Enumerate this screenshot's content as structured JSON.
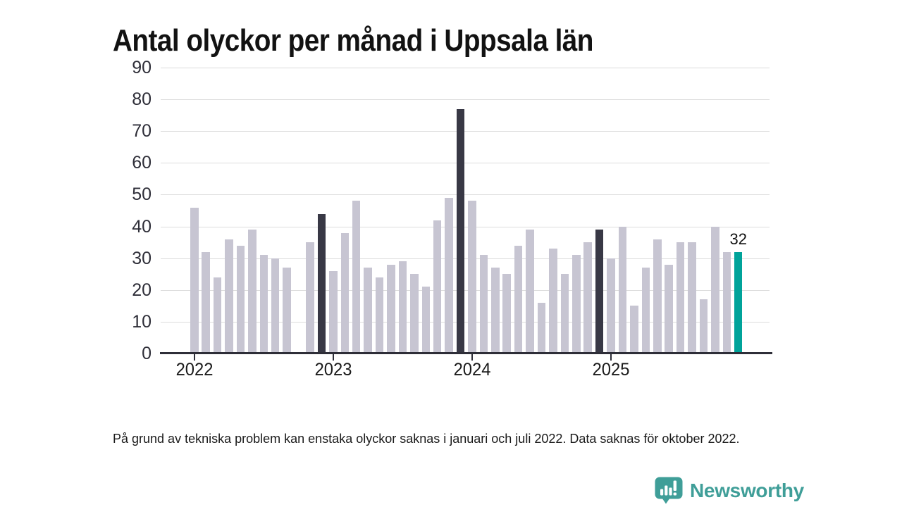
{
  "title": "Antal olyckor per månad i Uppsala län",
  "footnote": "På grund av tekniska problem kan enstaka olyckor saknas i januari och juli 2022. Data saknas för oktober 2022.",
  "logo": {
    "text": "Newsworthy",
    "color": "#3f9e98"
  },
  "colors": {
    "bar_normal": "#c7c5d2",
    "bar_december": "#383845",
    "bar_highlight": "#00a39a",
    "grid": "#dcdcdc",
    "axis": "#2e2e38",
    "label_text": "#111111"
  },
  "chart_data": {
    "type": "bar",
    "title": "Antal olyckor per månad i Uppsala län",
    "xlabel": "",
    "ylabel": "",
    "ylim": [
      0,
      90
    ],
    "y_ticks": [
      0,
      10,
      20,
      30,
      40,
      50,
      60,
      70,
      80,
      90
    ],
    "x_tick_labels": [
      "2022",
      "2023",
      "2024",
      "2025"
    ],
    "grid": "horizontal",
    "legend": "none",
    "note": "October 2022 has no bar (data missing); December bars are dark; latest month is teal with value label",
    "months": [
      {
        "m": "2022-01",
        "v": 46,
        "kind": "normal"
      },
      {
        "m": "2022-02",
        "v": 32,
        "kind": "normal"
      },
      {
        "m": "2022-03",
        "v": 24,
        "kind": "normal"
      },
      {
        "m": "2022-04",
        "v": 36,
        "kind": "normal"
      },
      {
        "m": "2022-05",
        "v": 34,
        "kind": "normal"
      },
      {
        "m": "2022-06",
        "v": 39,
        "kind": "normal"
      },
      {
        "m": "2022-07",
        "v": 31,
        "kind": "normal"
      },
      {
        "m": "2022-08",
        "v": 30,
        "kind": "normal"
      },
      {
        "m": "2022-09",
        "v": 27,
        "kind": "normal"
      },
      {
        "m": "2022-10",
        "v": null,
        "kind": "missing"
      },
      {
        "m": "2022-11",
        "v": 35,
        "kind": "normal"
      },
      {
        "m": "2022-12",
        "v": 44,
        "kind": "december"
      },
      {
        "m": "2023-01",
        "v": 26,
        "kind": "normal"
      },
      {
        "m": "2023-02",
        "v": 38,
        "kind": "normal"
      },
      {
        "m": "2023-03",
        "v": 48,
        "kind": "normal"
      },
      {
        "m": "2023-04",
        "v": 27,
        "kind": "normal"
      },
      {
        "m": "2023-05",
        "v": 24,
        "kind": "normal"
      },
      {
        "m": "2023-06",
        "v": 28,
        "kind": "normal"
      },
      {
        "m": "2023-07",
        "v": 29,
        "kind": "normal"
      },
      {
        "m": "2023-08",
        "v": 25,
        "kind": "normal"
      },
      {
        "m": "2023-09",
        "v": 21,
        "kind": "normal"
      },
      {
        "m": "2023-10",
        "v": 42,
        "kind": "normal"
      },
      {
        "m": "2023-11",
        "v": 49,
        "kind": "normal"
      },
      {
        "m": "2023-12",
        "v": 77,
        "kind": "december"
      },
      {
        "m": "2024-01",
        "v": 48,
        "kind": "normal"
      },
      {
        "m": "2024-02",
        "v": 31,
        "kind": "normal"
      },
      {
        "m": "2024-03",
        "v": 27,
        "kind": "normal"
      },
      {
        "m": "2024-04",
        "v": 25,
        "kind": "normal"
      },
      {
        "m": "2024-05",
        "v": 34,
        "kind": "normal"
      },
      {
        "m": "2024-06",
        "v": 39,
        "kind": "normal"
      },
      {
        "m": "2024-07",
        "v": 16,
        "kind": "normal"
      },
      {
        "m": "2024-08",
        "v": 33,
        "kind": "normal"
      },
      {
        "m": "2024-09",
        "v": 25,
        "kind": "normal"
      },
      {
        "m": "2024-10",
        "v": 31,
        "kind": "normal"
      },
      {
        "m": "2024-11",
        "v": 35,
        "kind": "normal"
      },
      {
        "m": "2024-12",
        "v": 39,
        "kind": "december"
      },
      {
        "m": "2025-01",
        "v": 30,
        "kind": "normal"
      },
      {
        "m": "2025-02",
        "v": 40,
        "kind": "normal"
      },
      {
        "m": "2025-03",
        "v": 15,
        "kind": "normal"
      },
      {
        "m": "2025-04",
        "v": 27,
        "kind": "normal"
      },
      {
        "m": "2025-05",
        "v": 36,
        "kind": "normal"
      },
      {
        "m": "2025-06",
        "v": 28,
        "kind": "normal"
      },
      {
        "m": "2025-07",
        "v": 35,
        "kind": "normal"
      },
      {
        "m": "2025-08",
        "v": 35,
        "kind": "normal"
      },
      {
        "m": "2025-09",
        "v": 17,
        "kind": "normal"
      },
      {
        "m": "2025-10",
        "v": 40,
        "kind": "normal"
      },
      {
        "m": "2025-11",
        "v": 32,
        "kind": "normal"
      },
      {
        "m": "2025-12",
        "v": 32,
        "kind": "highlight",
        "label": "32"
      }
    ]
  }
}
